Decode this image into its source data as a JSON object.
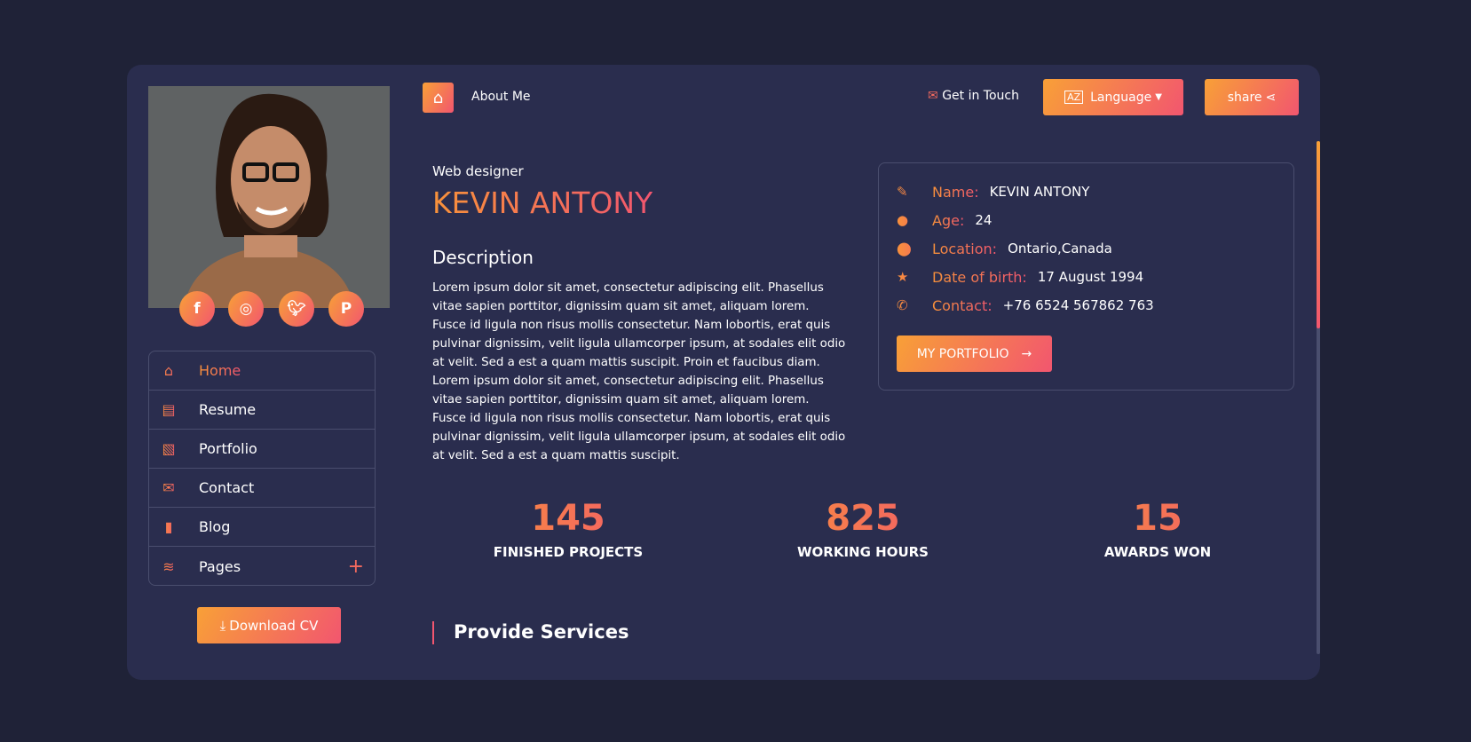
{
  "profile": {
    "role": "Web designer",
    "name": "KEVIN ANTONY",
    "description_title": "Description",
    "description": "Lorem ipsum dolor sit amet, consectetur adipiscing elit. Phasellus vitae sapien porttitor, dignissim quam sit amet, aliquam lorem. Fusce id ligula non risus mollis consectetur. Nam lobortis, erat quis pulvinar dignissim, velit ligula ullamcorper ipsum, at sodales elit odio at velit. Sed a est a quam mattis suscipit. Proin et faucibus diam. Lorem ipsum dolor sit amet, consectetur adipiscing elit. Phasellus vitae sapien porttitor, dignissim quam sit amet, aliquam lorem. Fusce id ligula non risus mollis consectetur. Nam lobortis, erat quis pulvinar dignissim, velit ligula ullamcorper ipsum, at sodales elit odio at velit. Sed a est a quam mattis suscipit."
  },
  "social": [
    "facebook-icon",
    "instagram-icon",
    "twitter-icon",
    "pinterest-icon"
  ],
  "menu": [
    {
      "label": "Home",
      "icon": "home-icon",
      "active": true
    },
    {
      "label": "Resume",
      "icon": "file-icon"
    },
    {
      "label": "Portfolio",
      "icon": "images-icon"
    },
    {
      "label": "Contact",
      "icon": "envelope-icon"
    },
    {
      "label": "Blog",
      "icon": "book-icon"
    },
    {
      "label": "Pages",
      "icon": "layers-icon",
      "expand": "+"
    }
  ],
  "download_label": "Download CV",
  "topbar": {
    "breadcrumb": "About Me",
    "get_in_touch": "Get in Touch",
    "language": "Language",
    "share": "share"
  },
  "info": [
    {
      "label": "Name:",
      "value": "KEVIN ANTONY"
    },
    {
      "label": "Age:",
      "value": "24"
    },
    {
      "label": "Location:",
      "value": "Ontario,Canada"
    },
    {
      "label": "Date of birth:",
      "value": "17 August 1994"
    },
    {
      "label": "Contact:",
      "value": "+76 6524 567862 763"
    }
  ],
  "portfolio_button": "MY PORTFOLIO",
  "stats": [
    {
      "value": "145",
      "label": "FINISHED PROJECTS"
    },
    {
      "value": "825",
      "label": "WORKING HOURS"
    },
    {
      "value": "15",
      "label": "AWARDS WON"
    }
  ],
  "services_title": "Provide Services",
  "colors": {
    "background": "#1f2237",
    "card": "#2a2d4e",
    "accent_start": "#f8a037",
    "accent_end": "#f2566f"
  }
}
